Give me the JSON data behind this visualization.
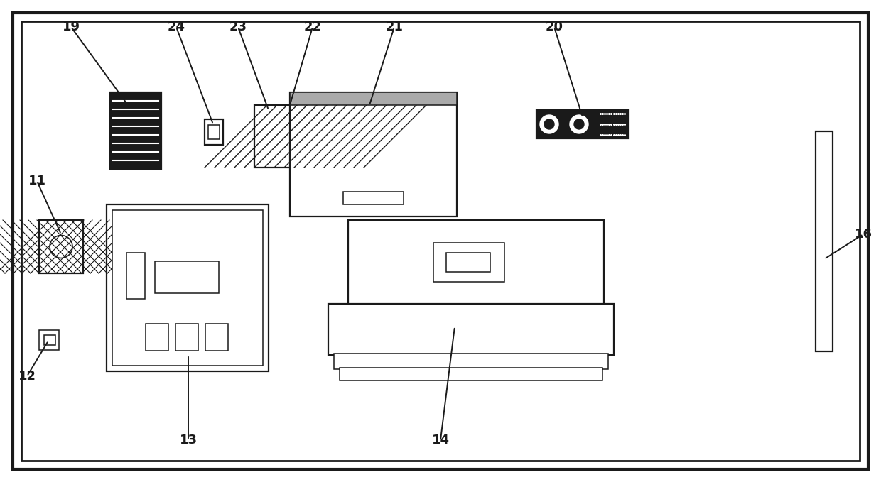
{
  "bg_color": "#ffffff",
  "line_color": "#1a1a1a",
  "lw_outer": 3.0,
  "lw_inner": 2.0,
  "lw_med": 1.6,
  "lw_thin": 1.1,
  "fig_w": 12.4,
  "fig_h": 6.79
}
